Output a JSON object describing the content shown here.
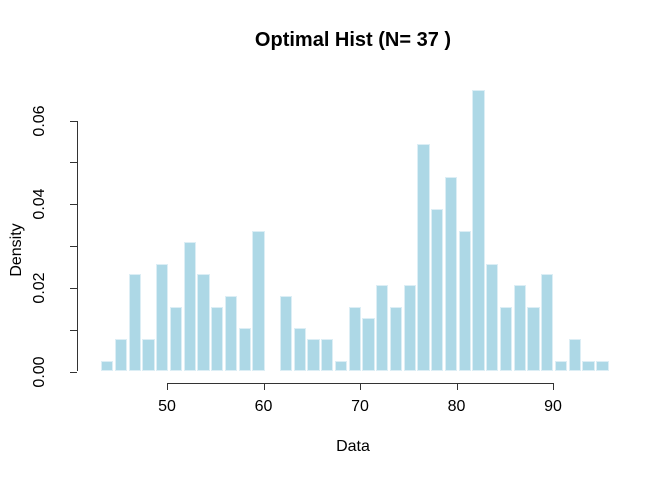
{
  "chart_data": {
    "type": "bar",
    "subtype": "histogram",
    "title": "Optimal Hist (N= 37 )",
    "xlabel": "Data",
    "ylabel": "Density",
    "n_bins": 37,
    "bin_start": 43.1,
    "bin_width": 1.425,
    "x_ticks": [
      50,
      60,
      70,
      80,
      90
    ],
    "y_tick_values": [
      0.0,
      0.01,
      0.02,
      0.03,
      0.04,
      0.05,
      0.06
    ],
    "y_tick_labels": [
      "0.00",
      "",
      "0.02",
      "",
      "0.04",
      "",
      "0.06"
    ],
    "xlim": [
      43.1,
      95.8
    ],
    "ylim": [
      0,
      0.067
    ],
    "grid": false,
    "legend": null,
    "counts": [
      1,
      3,
      9,
      3,
      10,
      6,
      12,
      9,
      6,
      7,
      4,
      13,
      0,
      7,
      4,
      3,
      3,
      1,
      6,
      5,
      8,
      6,
      8,
      21,
      15,
      18,
      13,
      26,
      10,
      6,
      8,
      6,
      9,
      1,
      3,
      1,
      1
    ],
    "densities": [
      0.0026,
      0.0078,
      0.0233,
      0.0078,
      0.0258,
      0.0155,
      0.031,
      0.0233,
      0.0155,
      0.0181,
      0.0103,
      0.0336,
      0,
      0.0181,
      0.0103,
      0.0078,
      0.0078,
      0.0026,
      0.0155,
      0.0129,
      0.0207,
      0.0155,
      0.0207,
      0.0543,
      0.0388,
      0.0465,
      0.0336,
      0.0672,
      0.0258,
      0.0155,
      0.0207,
      0.0155,
      0.0233,
      0.0026,
      0.0078,
      0.0026,
      0.0026
    ],
    "bar_fill": "#ADD8E6",
    "bar_border": "#DCEEF5",
    "axis_color": "#333333",
    "text_color": "#000000"
  }
}
